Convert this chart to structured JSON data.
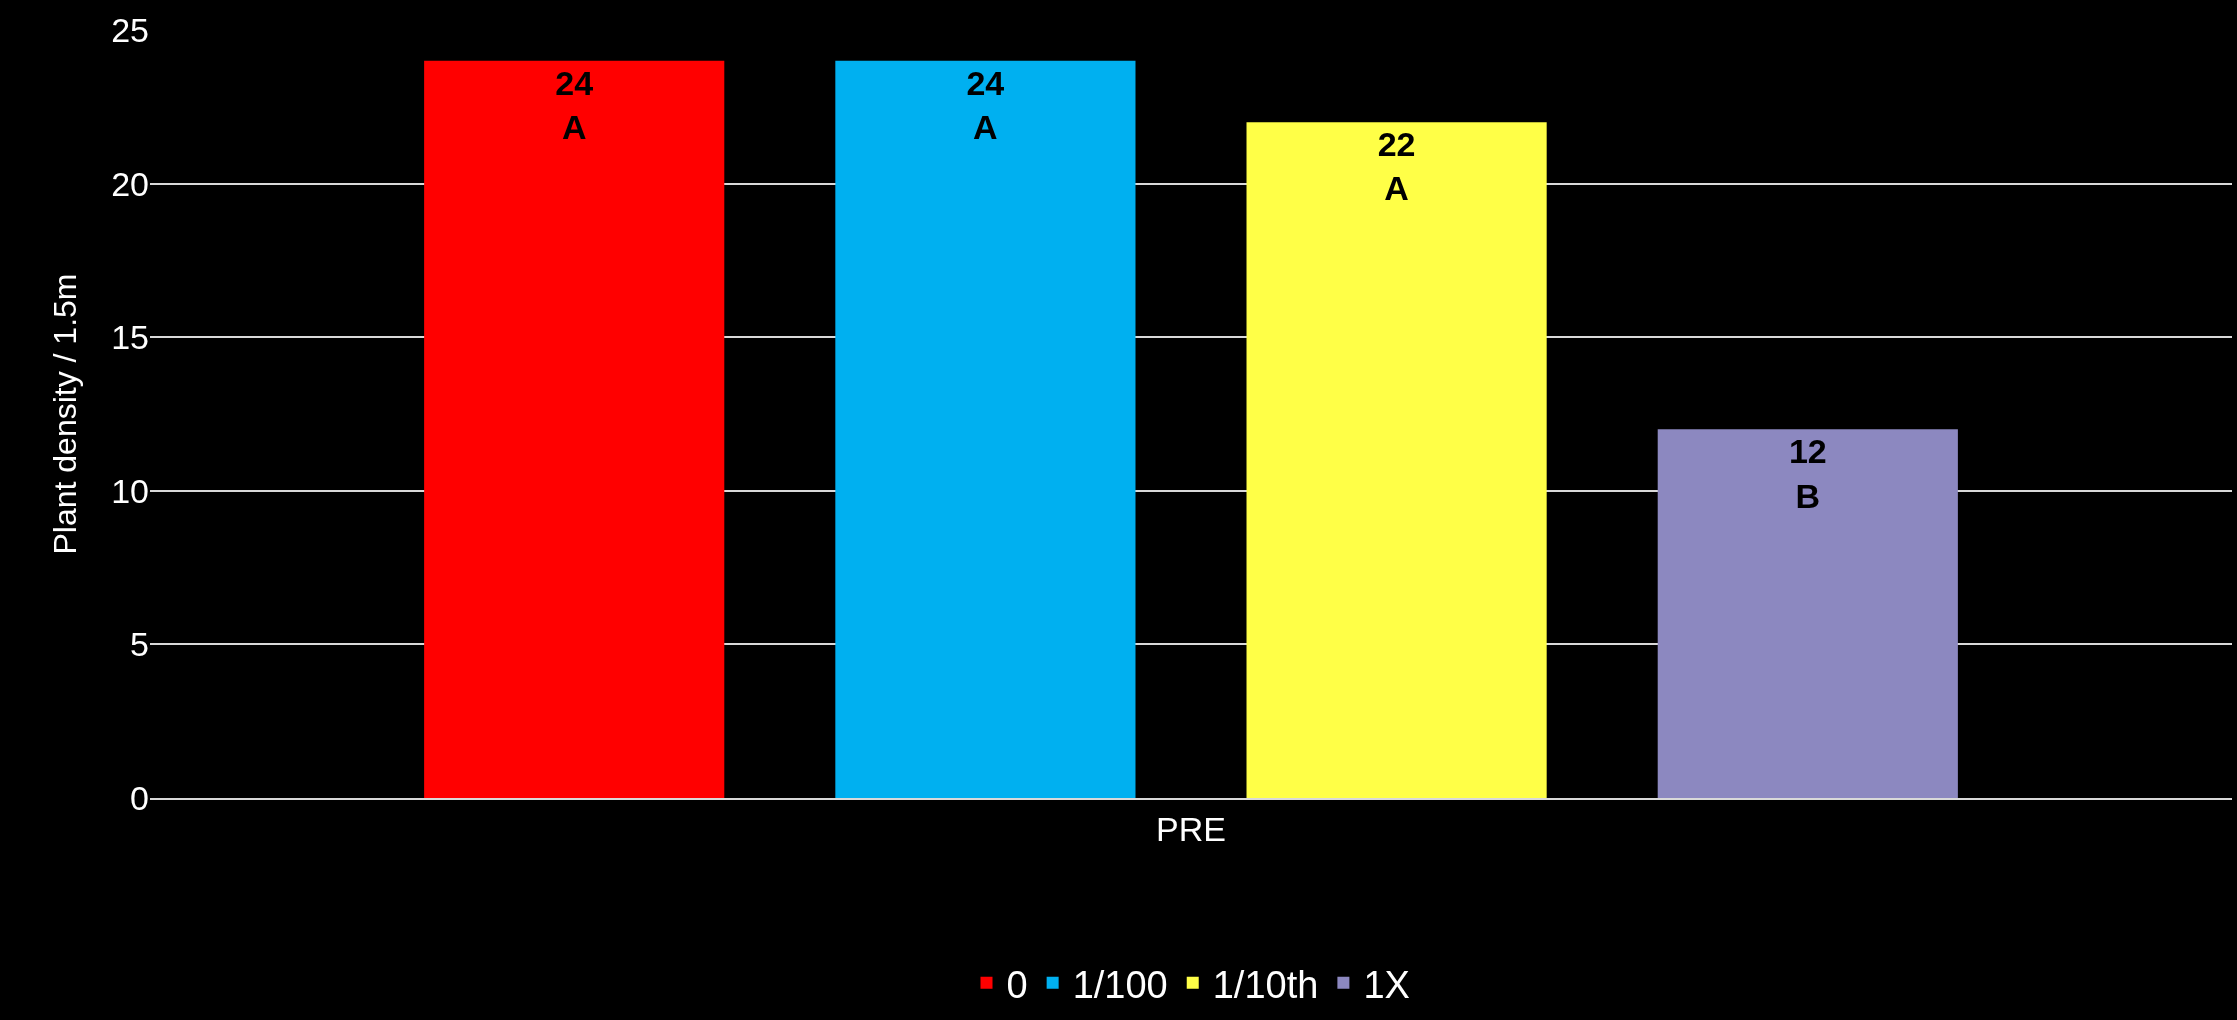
{
  "chart_data": {
    "type": "bar",
    "categories": [
      "PRE"
    ],
    "ylabel": "Plant density / 1.5m",
    "ylim": [
      0,
      25
    ],
    "yticks": [
      0,
      5,
      10,
      15,
      20,
      25
    ],
    "grid": "y",
    "legend": "bottom",
    "series": [
      {
        "name": "0",
        "color": "#ff0000",
        "values": [
          24
        ],
        "value_labels": [
          "24\nA"
        ]
      },
      {
        "name": "1/100",
        "color": "#00b0f0",
        "values": [
          24
        ],
        "value_labels": [
          "24\nA"
        ]
      },
      {
        "name": "1/10th",
        "color": "#ffff47",
        "values": [
          22
        ],
        "value_labels": [
          "22\nA"
        ]
      },
      {
        "name": "1X",
        "color": "#8c88c0",
        "values": [
          12
        ],
        "value_labels": [
          "12\nB"
        ]
      }
    ]
  }
}
